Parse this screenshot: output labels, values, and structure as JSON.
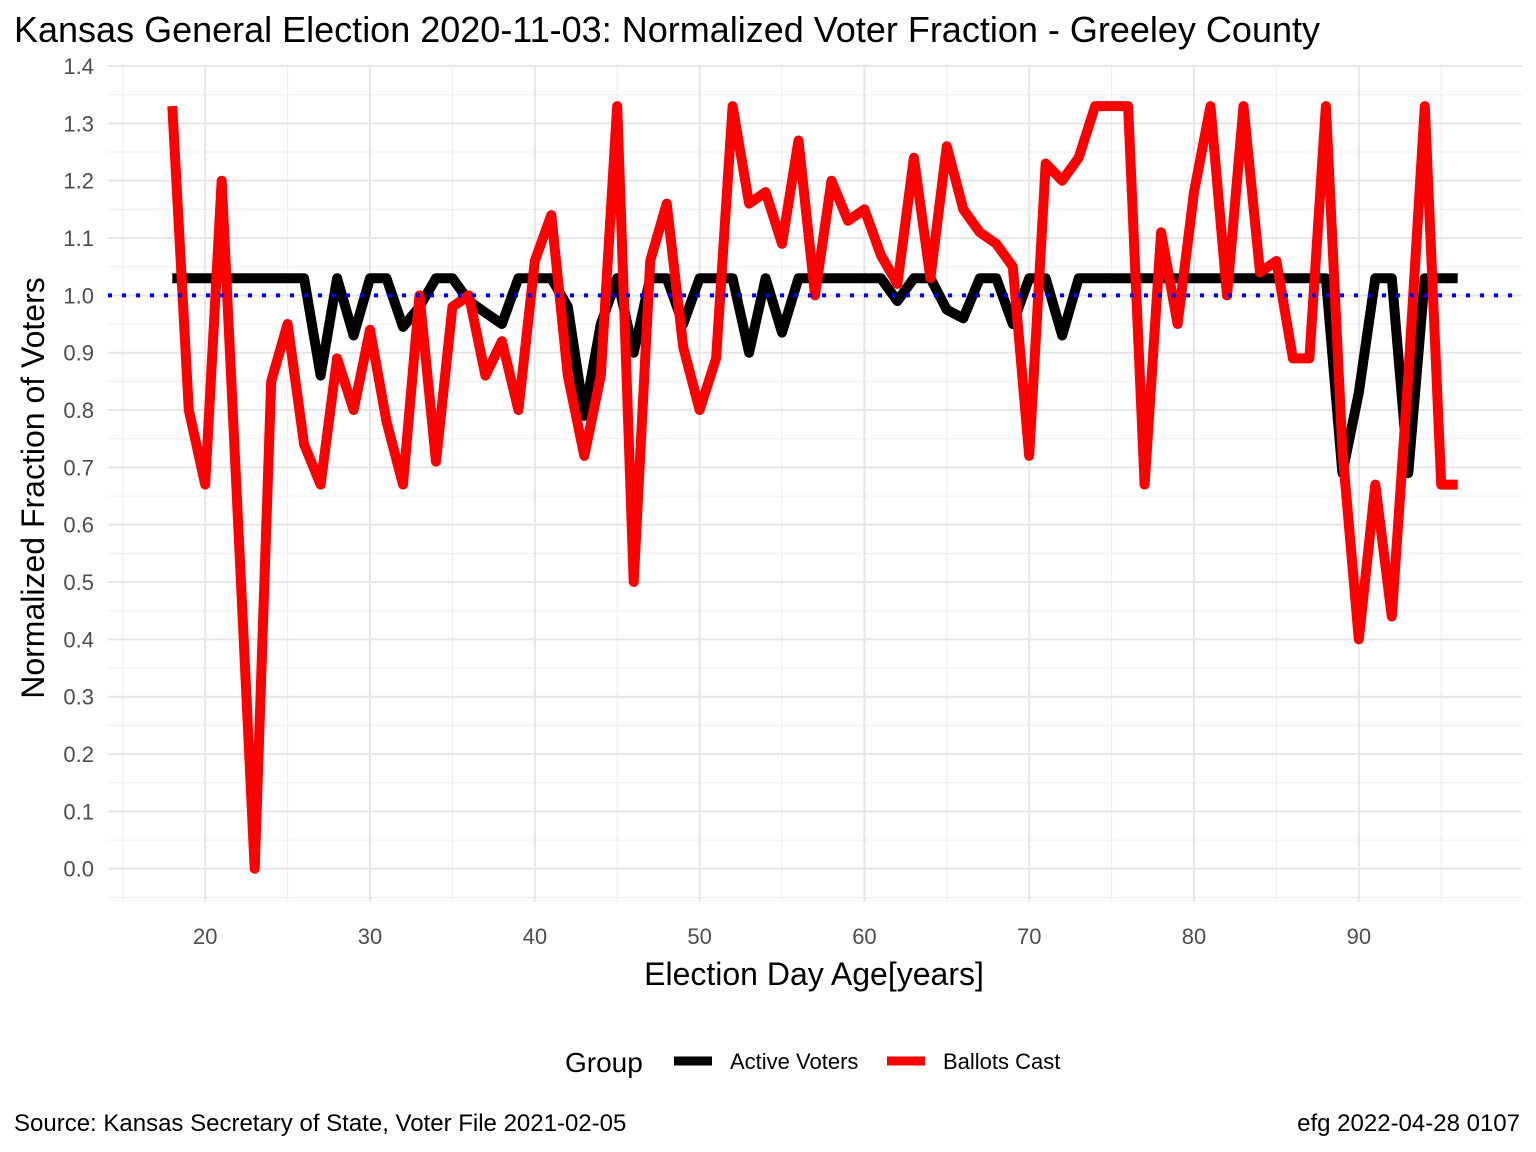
{
  "title": "Kansas General Election 2020-11-03:  Normalized Voter Fraction - Greeley County",
  "caption_left": "Source:  Kansas Secretary of State, Voter File  2021-02-05",
  "caption_right": "efg 2022-04-28 0107",
  "legend": {
    "title": "Group",
    "placement": "bottom",
    "items": [
      {
        "label": "Active Voters",
        "color": "#000000"
      },
      {
        "label": "Ballots Cast",
        "color": "#ff0000"
      }
    ]
  },
  "chart_data": {
    "type": "line",
    "title": "Kansas General Election 2020-11-03:  Normalized Voter Fraction - Greeley County",
    "xlabel": "Election Day Age[years]",
    "ylabel": "Normalized Fraction of Voters",
    "xlim": [
      14.1,
      99.9
    ],
    "ylim": [
      -0.058,
      1.4
    ],
    "xticks": [
      20,
      30,
      40,
      50,
      60,
      70,
      80,
      90
    ],
    "yticks": [
      0.0,
      0.1,
      0.2,
      0.3,
      0.4,
      0.5,
      0.6,
      0.7,
      0.8,
      0.9,
      1.0,
      1.1,
      1.2,
      1.3,
      1.4
    ],
    "grid": true,
    "reference_line": {
      "y": 1.0,
      "color": "#0000ff",
      "style": "dotted"
    },
    "x": [
      18,
      19,
      20,
      21,
      22,
      23,
      24,
      25,
      26,
      27,
      28,
      29,
      30,
      31,
      32,
      33,
      34,
      35,
      36,
      37,
      38,
      39,
      40,
      41,
      42,
      43,
      44,
      45,
      46,
      47,
      48,
      49,
      50,
      51,
      52,
      53,
      54,
      55,
      56,
      57,
      58,
      59,
      60,
      61,
      62,
      63,
      64,
      65,
      66,
      67,
      68,
      69,
      70,
      71,
      72,
      73,
      74,
      75,
      76,
      77,
      78,
      79,
      80,
      81,
      82,
      83,
      84,
      85,
      86,
      87,
      88,
      89,
      90,
      91,
      92,
      93,
      94,
      95,
      96
    ],
    "series": [
      {
        "name": "Active Voters",
        "color": "#000000",
        "values": [
          1.03,
          1.03,
          1.03,
          1.03,
          1.03,
          1.03,
          1.03,
          1.03,
          1.03,
          0.86,
          1.03,
          0.93,
          1.03,
          1.03,
          0.945,
          0.98,
          1.03,
          1.03,
          0.99,
          0.97,
          0.95,
          1.03,
          1.03,
          1.03,
          0.98,
          0.79,
          0.95,
          1.03,
          0.9,
          1.03,
          1.03,
          0.95,
          1.03,
          1.03,
          1.03,
          0.9,
          1.03,
          0.935,
          1.03,
          1.03,
          1.03,
          1.03,
          1.03,
          1.03,
          0.99,
          1.03,
          1.03,
          0.975,
          0.96,
          1.03,
          1.03,
          0.95,
          1.03,
          1.03,
          0.93,
          1.03,
          1.03,
          1.03,
          1.03,
          1.03,
          1.03,
          1.03,
          1.03,
          1.03,
          1.03,
          1.03,
          1.03,
          1.03,
          1.03,
          1.03,
          1.03,
          0.69,
          0.83,
          1.03,
          1.03,
          0.69,
          1.03,
          1.03,
          1.03
        ]
      },
      {
        "name": "Ballots Cast",
        "color": "#ff0000",
        "values": [
          1.33,
          0.8,
          0.67,
          1.2,
          0.6,
          0.0,
          0.85,
          0.95,
          0.74,
          0.67,
          0.89,
          0.8,
          0.94,
          0.78,
          0.67,
          1.0,
          0.71,
          0.98,
          1.0,
          0.86,
          0.92,
          0.8,
          1.06,
          1.14,
          0.86,
          0.72,
          0.86,
          1.33,
          0.5,
          1.06,
          1.16,
          0.91,
          0.8,
          0.89,
          1.33,
          1.16,
          1.18,
          1.09,
          1.27,
          1.0,
          1.2,
          1.13,
          1.15,
          1.07,
          1.02,
          1.24,
          1.03,
          1.26,
          1.15,
          1.11,
          1.09,
          1.05,
          0.72,
          1.23,
          1.2,
          1.24,
          1.33,
          1.33,
          1.33,
          0.67,
          1.11,
          0.95,
          1.18,
          1.33,
          1.0,
          1.33,
          1.04,
          1.06,
          0.89,
          0.89,
          1.33,
          0.73,
          0.4,
          0.67,
          0.44,
          0.86,
          1.33,
          0.67,
          0.67
        ]
      }
    ]
  }
}
